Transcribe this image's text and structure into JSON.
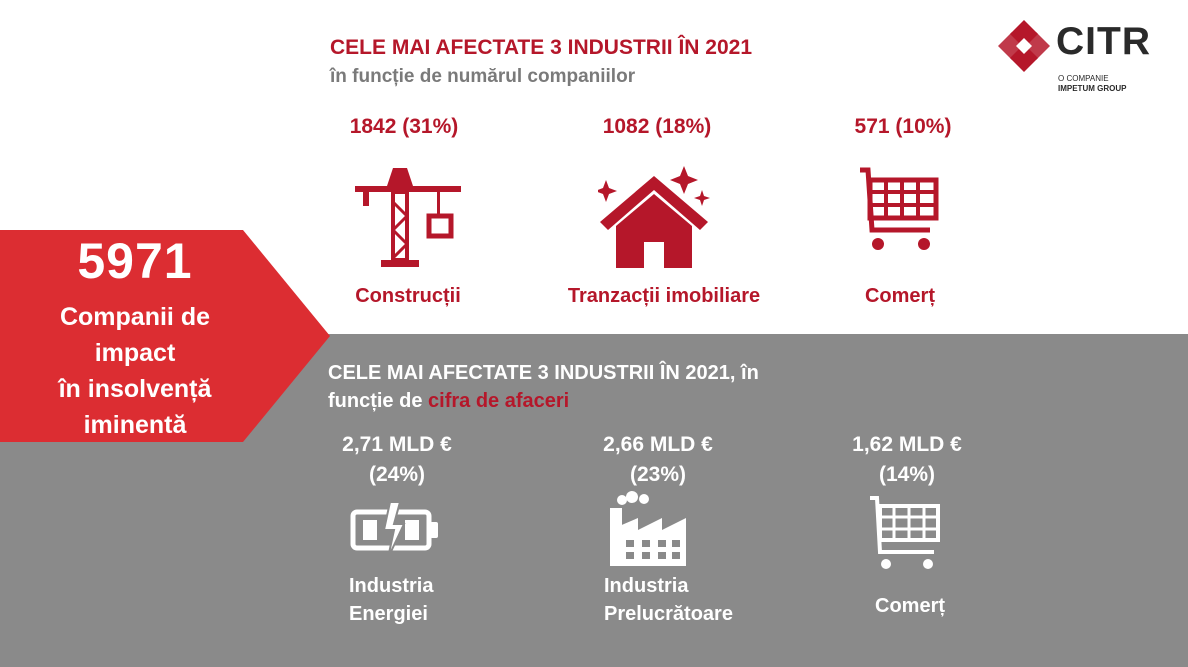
{
  "logo": {
    "name": "CITR",
    "sub1": "O COMPANIE",
    "sub2": "IMPETUM GROUP",
    "color": "#b5172a"
  },
  "banner": {
    "number": "5971",
    "line1": "Companii de",
    "line2": "impact",
    "line3": "în insolvență",
    "line4": "iminentă",
    "color": "#dc2d32"
  },
  "section_top": {
    "title": "CELE MAI AFECTATE 3 INDUSTRII ÎN 2021",
    "subtitle": "în funcție de numărul companiilor",
    "items": [
      {
        "value": "1842 (31%)",
        "label": "Construcții",
        "icon": "crane-icon"
      },
      {
        "value": "1082 (18%)",
        "label": "Tranzacții imobiliare",
        "icon": "house-icon"
      },
      {
        "value": "571 (10%)",
        "label": "Comerț",
        "icon": "cart-icon"
      }
    ]
  },
  "section_bottom": {
    "title_part1": "CELE MAI AFECTATE 3 INDUSTRII ÎN 2021, în",
    "title_part2": "funcție de ",
    "title_highlight": "cifra de afaceri",
    "items": [
      {
        "value": "2,71 MLD €",
        "pct": "(24%)",
        "label1": "Industria",
        "label2": "Energiei",
        "icon": "battery-icon"
      },
      {
        "value": "2,66 MLD €",
        "pct": "(23%)",
        "label1": "Industria",
        "label2": "Prelucrătoare",
        "icon": "factory-icon"
      },
      {
        "value": "1,62 MLD €",
        "pct": "(14%)",
        "label1": "Comerț",
        "icon": "cart-icon"
      }
    ]
  },
  "colors": {
    "accent": "#b5172a",
    "banner": "#dc2d32",
    "band": "#8a8a8a"
  }
}
